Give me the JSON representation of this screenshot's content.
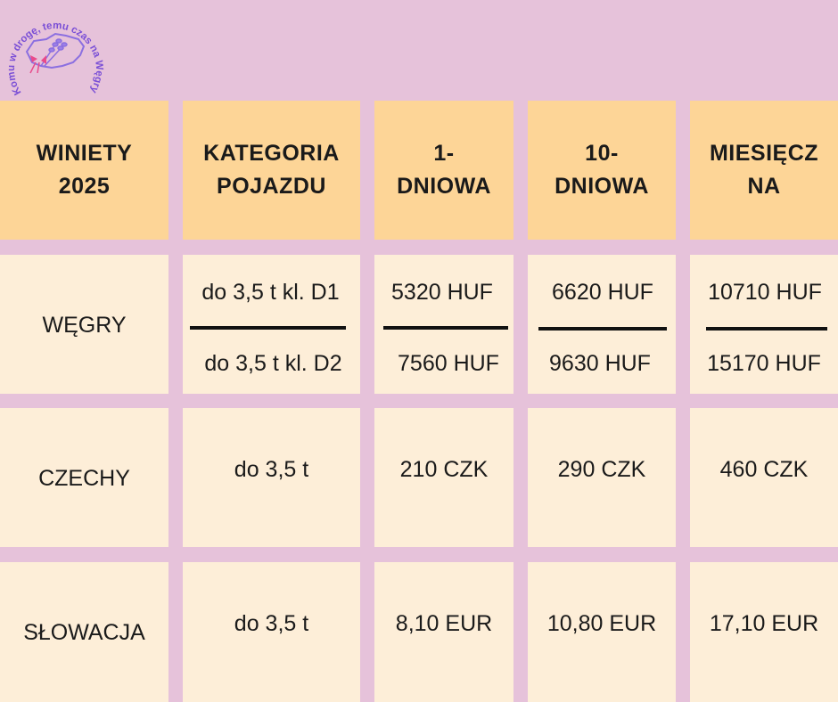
{
  "logo": {
    "text": "Komu w drogę, temu czas na Węgry",
    "icon": "hungary-map-lavender-icon",
    "colors": {
      "ring_text": "#7a4fd6",
      "map": "#8b6fe0",
      "bow": "#e94b8b"
    }
  },
  "header": {
    "col1": "WINIETY 2025",
    "col2": "KATEGORIA POJAZDU",
    "col3": "1- DNIOWA",
    "col4": "10- DNIOWA",
    "col5": "MIESIĘCZ NA"
  },
  "rows": [
    {
      "country": "WĘGRY",
      "category_top": "do 3,5 t kl. D1",
      "category_bottom": "do 3,5 t kl. D2",
      "day1_top": "5320 HUF",
      "day1_bottom": "7560 HUF",
      "day10_top": "6620 HUF",
      "day10_bottom": "9630 HUF",
      "month_top": "10710 HUF",
      "month_bottom": "15170 HUF"
    },
    {
      "country": "CZECHY",
      "category": "do 3,5 t",
      "day1": "210 CZK",
      "day10": "290 CZK",
      "month": "460 CZK"
    },
    {
      "country": "SŁOWACJA",
      "category": "do 3,5 t",
      "day1": "8,10 EUR",
      "day10": "10,80 EUR",
      "month": "17,10 EUR"
    }
  ],
  "colors": {
    "background": "#e6c2da",
    "header_cell": "#fdd597",
    "body_cell": "#fdeed8"
  }
}
